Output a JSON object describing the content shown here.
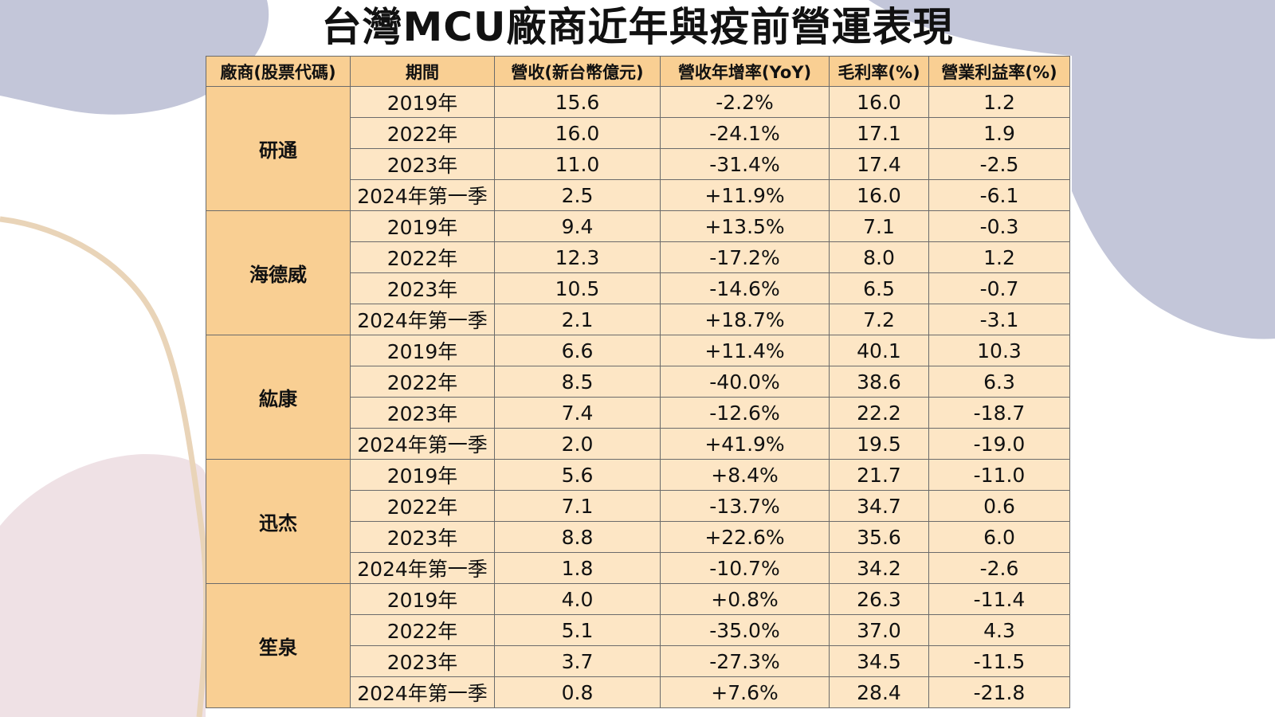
{
  "title": "台灣MCU廠商近年與疫前營運表現",
  "colors": {
    "header_bg": "#f9cf93",
    "cell_bg": "#fde6c5",
    "border": "#6b6b6b",
    "blob_blue": "#c3c6d9",
    "blob_pink": "#efe1e5",
    "curve_tan": "#e9d4b8"
  },
  "table": {
    "headers": [
      "廠商(股票代碼)",
      "期間",
      "營收(新台幣億元)",
      "營收年增率(YoY)",
      "毛利率(%)",
      "營業利益率(%)"
    ],
    "groups": [
      {
        "vendor": "研通",
        "rows": [
          {
            "period": "2019年",
            "revenue": "15.6",
            "yoy": "-2.2%",
            "gross_margin": "16.0",
            "op_margin": "1.2"
          },
          {
            "period": "2022年",
            "revenue": "16.0",
            "yoy": "-24.1%",
            "gross_margin": "17.1",
            "op_margin": "1.9"
          },
          {
            "period": "2023年",
            "revenue": "11.0",
            "yoy": "-31.4%",
            "gross_margin": "17.4",
            "op_margin": "-2.5"
          },
          {
            "period": "2024年第一季",
            "revenue": "2.5",
            "yoy": "+11.9%",
            "gross_margin": "16.0",
            "op_margin": "-6.1"
          }
        ]
      },
      {
        "vendor": "海德威",
        "rows": [
          {
            "period": "2019年",
            "revenue": "9.4",
            "yoy": "+13.5%",
            "gross_margin": "7.1",
            "op_margin": "-0.3"
          },
          {
            "period": "2022年",
            "revenue": "12.3",
            "yoy": "-17.2%",
            "gross_margin": "8.0",
            "op_margin": "1.2"
          },
          {
            "period": "2023年",
            "revenue": "10.5",
            "yoy": "-14.6%",
            "gross_margin": "6.5",
            "op_margin": "-0.7"
          },
          {
            "period": "2024年第一季",
            "revenue": "2.1",
            "yoy": "+18.7%",
            "gross_margin": "7.2",
            "op_margin": "-3.1"
          }
        ]
      },
      {
        "vendor": "紘康",
        "rows": [
          {
            "period": "2019年",
            "revenue": "6.6",
            "yoy": "+11.4%",
            "gross_margin": "40.1",
            "op_margin": "10.3"
          },
          {
            "period": "2022年",
            "revenue": "8.5",
            "yoy": "-40.0%",
            "gross_margin": "38.6",
            "op_margin": "6.3"
          },
          {
            "period": "2023年",
            "revenue": "7.4",
            "yoy": "-12.6%",
            "gross_margin": "22.2",
            "op_margin": "-18.7"
          },
          {
            "period": "2024年第一季",
            "revenue": "2.0",
            "yoy": "+41.9%",
            "gross_margin": "19.5",
            "op_margin": "-19.0"
          }
        ]
      },
      {
        "vendor": "迅杰",
        "rows": [
          {
            "period": "2019年",
            "revenue": "5.6",
            "yoy": "+8.4%",
            "gross_margin": "21.7",
            "op_margin": "-11.0"
          },
          {
            "period": "2022年",
            "revenue": "7.1",
            "yoy": "-13.7%",
            "gross_margin": "34.7",
            "op_margin": "0.6"
          },
          {
            "period": "2023年",
            "revenue": "8.8",
            "yoy": "+22.6%",
            "gross_margin": "35.6",
            "op_margin": "6.0"
          },
          {
            "period": "2024年第一季",
            "revenue": "1.8",
            "yoy": "-10.7%",
            "gross_margin": "34.2",
            "op_margin": "-2.6"
          }
        ]
      },
      {
        "vendor": "笙泉",
        "rows": [
          {
            "period": "2019年",
            "revenue": "4.0",
            "yoy": "+0.8%",
            "gross_margin": "26.3",
            "op_margin": "-11.4"
          },
          {
            "period": "2022年",
            "revenue": "5.1",
            "yoy": "-35.0%",
            "gross_margin": "37.0",
            "op_margin": "4.3"
          },
          {
            "period": "2023年",
            "revenue": "3.7",
            "yoy": "-27.3%",
            "gross_margin": "34.5",
            "op_margin": "-11.5"
          },
          {
            "period": "2024年第一季",
            "revenue": "0.8",
            "yoy": "+7.6%",
            "gross_margin": "28.4",
            "op_margin": "-21.8"
          }
        ]
      }
    ]
  }
}
